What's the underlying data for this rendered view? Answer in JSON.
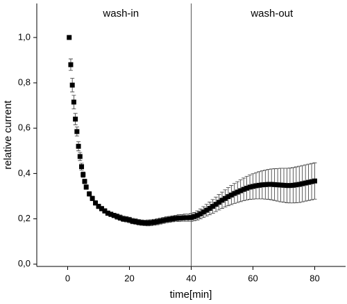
{
  "chart_data": {
    "type": "scatter",
    "x_label": "time[min]",
    "y_label": "relative current",
    "annotations": [
      "wash-in",
      "wash-out"
    ],
    "vline": 40,
    "xlim": [
      -10,
      90
    ],
    "xticks": [
      0,
      20,
      40,
      60,
      80
    ],
    "ylim": [
      -0.01,
      1.15
    ],
    "yticks": [
      {
        "value": 0,
        "label": "0,0"
      },
      {
        "value": 0.2,
        "label": "0,2"
      },
      {
        "value": 0.4,
        "label": "0,4"
      },
      {
        "value": 0.6,
        "label": "0,6"
      },
      {
        "value": 0.8,
        "label": "0,8"
      },
      {
        "value": 1.0,
        "label": "1,0"
      }
    ],
    "color": "#000000",
    "x": [
      0.5,
      1,
      1.5,
      2,
      2.5,
      3,
      3.5,
      4,
      4.5,
      5,
      5.5,
      6,
      7,
      8,
      9,
      10,
      11,
      12,
      13,
      14,
      15,
      16,
      17,
      18,
      19,
      20,
      21,
      22,
      23,
      24,
      25,
      26,
      27,
      28,
      29,
      30,
      31,
      32,
      33,
      34,
      35,
      36,
      37,
      38,
      39,
      40,
      41,
      42,
      43,
      44,
      45,
      46,
      47,
      48,
      49,
      50,
      51,
      52,
      53,
      54,
      55,
      56,
      57,
      58,
      59,
      60,
      61,
      62,
      63,
      64,
      65,
      66,
      67,
      68,
      69,
      70,
      71,
      72,
      73,
      74,
      75,
      76,
      77,
      78,
      79,
      80
    ],
    "values": [
      1.0,
      0.88,
      0.79,
      0.715,
      0.64,
      0.585,
      0.52,
      0.475,
      0.43,
      0.395,
      0.365,
      0.34,
      0.31,
      0.29,
      0.27,
      0.255,
      0.245,
      0.235,
      0.225,
      0.22,
      0.215,
      0.21,
      0.205,
      0.2,
      0.198,
      0.195,
      0.19,
      0.188,
      0.185,
      0.183,
      0.182,
      0.182,
      0.183,
      0.185,
      0.187,
      0.19,
      0.193,
      0.196,
      0.198,
      0.2,
      0.202,
      0.203,
      0.204,
      0.205,
      0.205,
      0.206,
      0.21,
      0.215,
      0.222,
      0.23,
      0.238,
      0.246,
      0.255,
      0.264,
      0.273,
      0.282,
      0.29,
      0.298,
      0.305,
      0.312,
      0.318,
      0.324,
      0.33,
      0.335,
      0.34,
      0.343,
      0.346,
      0.348,
      0.35,
      0.351,
      0.352,
      0.352,
      0.351,
      0.35,
      0.349,
      0.348,
      0.347,
      0.347,
      0.348,
      0.35,
      0.352,
      0.355,
      0.358,
      0.361,
      0.364,
      0.367
    ],
    "errors": [
      0,
      0.025,
      0.03,
      0.03,
      0.025,
      0.02,
      0.02,
      0.018,
      0.015,
      0.012,
      0.01,
      0.01,
      0.01,
      0.01,
      0.01,
      0.01,
      0.01,
      0.01,
      0.01,
      0.01,
      0.01,
      0.012,
      0.012,
      0.012,
      0.012,
      0.012,
      0.012,
      0.012,
      0.012,
      0.012,
      0.012,
      0.013,
      0.013,
      0.013,
      0.013,
      0.013,
      0.013,
      0.013,
      0.013,
      0.013,
      0.013,
      0.015,
      0.015,
      0.016,
      0.016,
      0.017,
      0.018,
      0.02,
      0.022,
      0.024,
      0.026,
      0.028,
      0.03,
      0.032,
      0.034,
      0.036,
      0.038,
      0.04,
      0.042,
      0.044,
      0.046,
      0.048,
      0.05,
      0.052,
      0.054,
      0.056,
      0.058,
      0.06,
      0.062,
      0.064,
      0.066,
      0.068,
      0.07,
      0.072,
      0.074,
      0.075,
      0.076,
      0.077,
      0.078,
      0.079,
      0.08,
      0.08,
      0.08,
      0.08,
      0.08,
      0.08
    ]
  }
}
